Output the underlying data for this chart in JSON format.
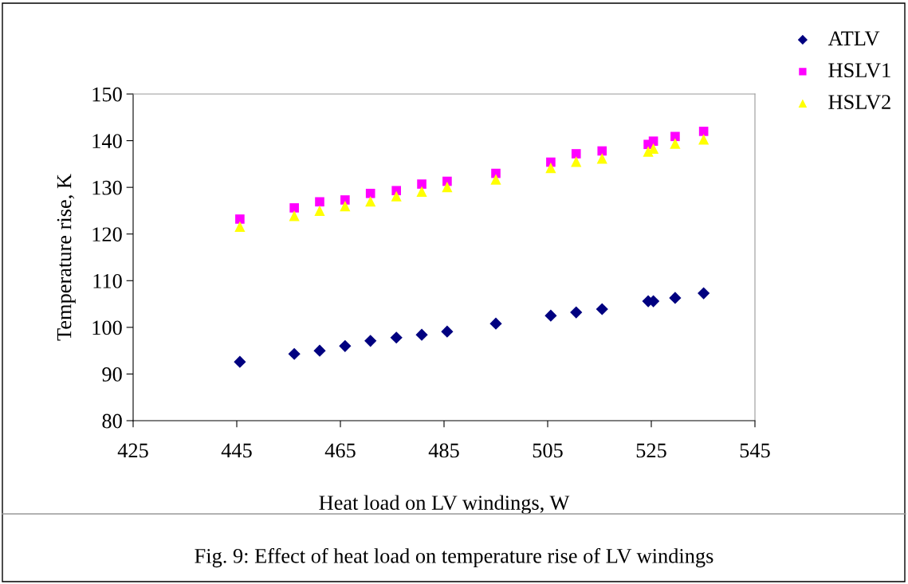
{
  "chart_data": {
    "type": "scatter",
    "xlabel": "Heat load on LV windings, W",
    "ylabel": "Temperature rise, K",
    "x": [
      445.6,
      456.1,
      461.0,
      465.9,
      470.8,
      475.8,
      480.7,
      485.6,
      495.0,
      505.6,
      510.5,
      515.5,
      524.4,
      525.4,
      529.6,
      535.1
    ],
    "series": [
      {
        "name": "ATLV",
        "color": "#000080",
        "marker": "diamond",
        "values": [
          92.6,
          94.3,
          95.0,
          96.0,
          97.1,
          97.8,
          98.4,
          99.1,
          100.8,
          102.5,
          103.2,
          103.9,
          105.6,
          105.6,
          106.3,
          107.3
        ]
      },
      {
        "name": "HSLV1",
        "color": "#ff00ff",
        "marker": "square",
        "values": [
          123.2,
          125.6,
          126.9,
          127.3,
          128.7,
          129.3,
          130.7,
          131.3,
          133.0,
          135.4,
          137.2,
          137.8,
          139.2,
          139.9,
          140.9,
          142.0
        ]
      },
      {
        "name": "HSLV2",
        "color": "#ffff00",
        "marker": "triangle",
        "values": [
          121.6,
          123.9,
          125.0,
          126.0,
          127.0,
          128.1,
          129.1,
          130.1,
          131.7,
          134.2,
          135.5,
          136.2,
          137.7,
          138.3,
          139.4,
          140.3
        ]
      }
    ],
    "xlim": [
      425,
      545
    ],
    "xticks": [
      425,
      445,
      465,
      485,
      505,
      525,
      545
    ],
    "ylim": [
      80,
      150
    ],
    "yticks": [
      80,
      90,
      100,
      110,
      120,
      130,
      140,
      150
    ],
    "grid": false,
    "legend": "top right",
    "annotations": [
      "Fig. 9: Effect of heat load on temperature rise of LV windings"
    ]
  }
}
